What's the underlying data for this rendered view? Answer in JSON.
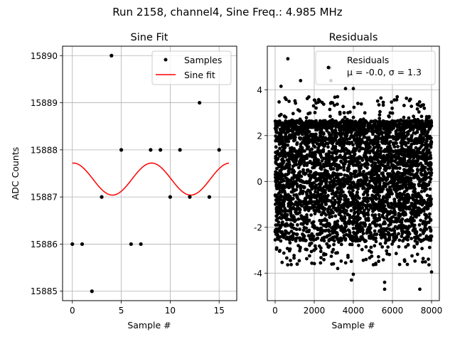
{
  "suptitle": "Run 2158, channel4, Sine Freq.: 4.985 MHz",
  "chart_data": [
    {
      "type": "scatter",
      "title": "Sine Fit",
      "xlabel": "Sample #",
      "ylabel": "ADC Counts",
      "xlim": [
        -1,
        16.8
      ],
      "ylim": [
        15884.8,
        15890.2
      ],
      "xticks": [
        0,
        5,
        10,
        15
      ],
      "yticks": [
        15885,
        15886,
        15887,
        15888,
        15889,
        15890
      ],
      "grid": true,
      "legend": {
        "position": "top-right",
        "entries": [
          "Samples",
          "Sine fit"
        ]
      },
      "series": [
        {
          "name": "Samples",
          "kind": "points",
          "color": "#000000",
          "x": [
            0,
            1,
            2,
            3,
            4,
            5,
            6,
            7,
            8,
            9,
            10,
            11,
            12,
            13,
            14,
            15
          ],
          "y": [
            15886,
            15886,
            15885,
            15887,
            15890,
            15888,
            15886,
            15886,
            15888,
            15888,
            15887,
            15888,
            15887,
            15889,
            15887,
            15888
          ]
        },
        {
          "name": "Sine fit",
          "kind": "line",
          "color": "#ff0000",
          "amplitude": 0.34,
          "offset": 15887.38,
          "period": 8,
          "x_peak": 0.1,
          "x_range": [
            0,
            16
          ]
        }
      ]
    },
    {
      "type": "scatter",
      "title": "Residuals",
      "xlabel": "Sample #",
      "xlim": [
        -400,
        8400
      ],
      "ylim": [
        -5.2,
        5.9
      ],
      "xticks": [
        0,
        2000,
        4000,
        6000,
        8000
      ],
      "yticks": [
        -4,
        -2,
        0,
        2,
        4
      ],
      "grid": true,
      "legend": {
        "position": "top-right",
        "entries": [
          "Residuals"
        ],
        "stats": "μ = -0.0, σ = 1.3"
      },
      "series": [
        {
          "name": "Residuals",
          "kind": "points",
          "color": "#000000",
          "n_points": 8000,
          "bands": [
            -2.6,
            -1.6,
            -1.3,
            -0.6,
            -0.3,
            0.35,
            0.65,
            1.35,
            1.65,
            2.35,
            2.65
          ],
          "outliers": [
            [
              650,
              5.35
            ],
            [
              2800,
              4.95
            ],
            [
              2850,
              4.4
            ],
            [
              1300,
              4.4
            ],
            [
              4000,
              4.05
            ],
            [
              3600,
              4.05
            ],
            [
              300,
              4.15
            ],
            [
              3900,
              -4.3
            ],
            [
              4000,
              -4.05
            ],
            [
              5600,
              -4.4
            ],
            [
              5600,
              -4.7
            ],
            [
              7400,
              -4.7
            ],
            [
              8000,
              -3.95
            ],
            [
              3200,
              -3.8
            ]
          ]
        }
      ]
    }
  ]
}
